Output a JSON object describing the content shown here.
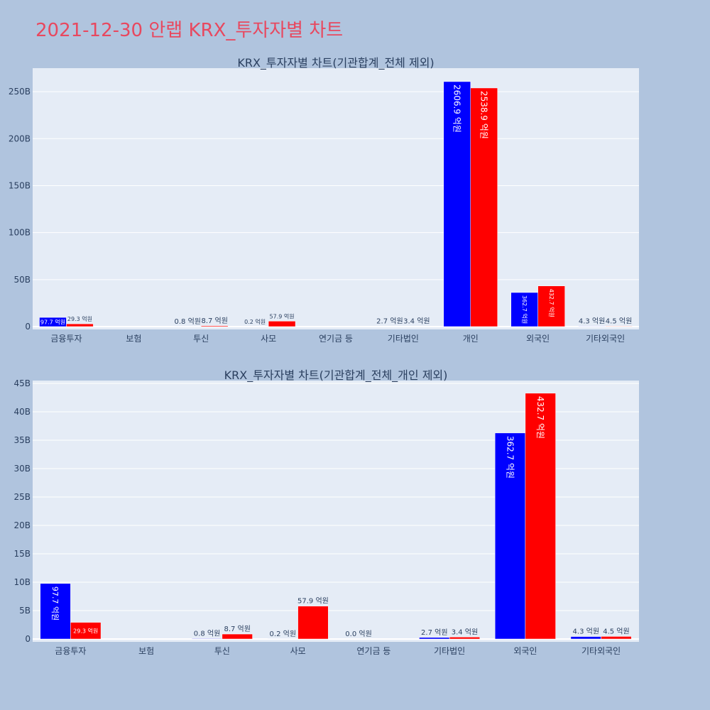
{
  "page_title": "2021-12-30 안랩 KRX_투자자별 차트",
  "colors": {
    "buy": "#0000ff",
    "sell": "#ff0000",
    "plot_bg": "#e5ecf6",
    "page_bg": "#b0c4de",
    "title": "#e8485f"
  },
  "chart_data": [
    {
      "type": "bar",
      "title": "KRX_투자자별 차트(기관합계_전체 제외)",
      "categories": [
        "금융투자",
        "보험",
        "투신",
        "사모",
        "연기금 등",
        "기타법인",
        "개인",
        "외국인",
        "기타외국인"
      ],
      "series": [
        {
          "color": "#0000ff",
          "values": [
            9770000000,
            0,
            80000000,
            20000000,
            0,
            270000000,
            260690000000,
            36270000000,
            430000000
          ],
          "labels": [
            "97.7 억원",
            "",
            "0.8 억원",
            "0.2 억원",
            "",
            "2.7 억원",
            "2606.9 억원",
            "362.7 억원",
            "4.3 억원"
          ]
        },
        {
          "color": "#ff0000",
          "values": [
            2930000000,
            0,
            870000000,
            5790000000,
            0,
            340000000,
            253890000000,
            43270000000,
            450000000
          ],
          "labels": [
            "29.3 억원",
            "",
            "8.7 억원",
            "57.9 억원",
            "",
            "3.4 억원",
            "2538.9 억원",
            "432.7 억원",
            "4.5 억원"
          ]
        }
      ],
      "yticks": [
        0,
        50000000000,
        100000000000,
        150000000000,
        200000000000,
        250000000000
      ],
      "ytick_labels": [
        "0",
        "50B",
        "100B",
        "150B",
        "200B",
        "250B"
      ],
      "ylim": [
        0,
        275000000000
      ],
      "grid": true
    },
    {
      "type": "bar",
      "title": "KRX_투자자별 차트(기관합계_전체_개인 제외)",
      "categories": [
        "금융투자",
        "보험",
        "투신",
        "사모",
        "연기금 등",
        "기타법인",
        "외국인",
        "기타외국인"
      ],
      "series": [
        {
          "color": "#0000ff",
          "values": [
            9770000000,
            0,
            80000000,
            20000000,
            0,
            270000000,
            36270000000,
            430000000
          ],
          "labels": [
            "97.7 억원",
            "",
            "0.8 억원",
            "0.2 억원",
            "0.0 억원",
            "2.7 억원",
            "362.7 억원",
            "4.3 억원"
          ]
        },
        {
          "color": "#ff0000",
          "values": [
            2930000000,
            0,
            870000000,
            5790000000,
            0,
            340000000,
            43270000000,
            450000000
          ],
          "labels": [
            "29.3 억원",
            "",
            "8.7 억원",
            "57.9 억원",
            "",
            "3.4 억원",
            "432.7 억원",
            "4.5 억원"
          ]
        }
      ],
      "yticks": [
        0,
        5000000000,
        10000000000,
        15000000000,
        20000000000,
        25000000000,
        30000000000,
        35000000000,
        40000000000,
        45000000000
      ],
      "ytick_labels": [
        "0",
        "5B",
        "10B",
        "15B",
        "20B",
        "25B",
        "30B",
        "35B",
        "40B",
        "45B"
      ],
      "ylim": [
        0,
        45500000000
      ],
      "grid": true
    }
  ]
}
